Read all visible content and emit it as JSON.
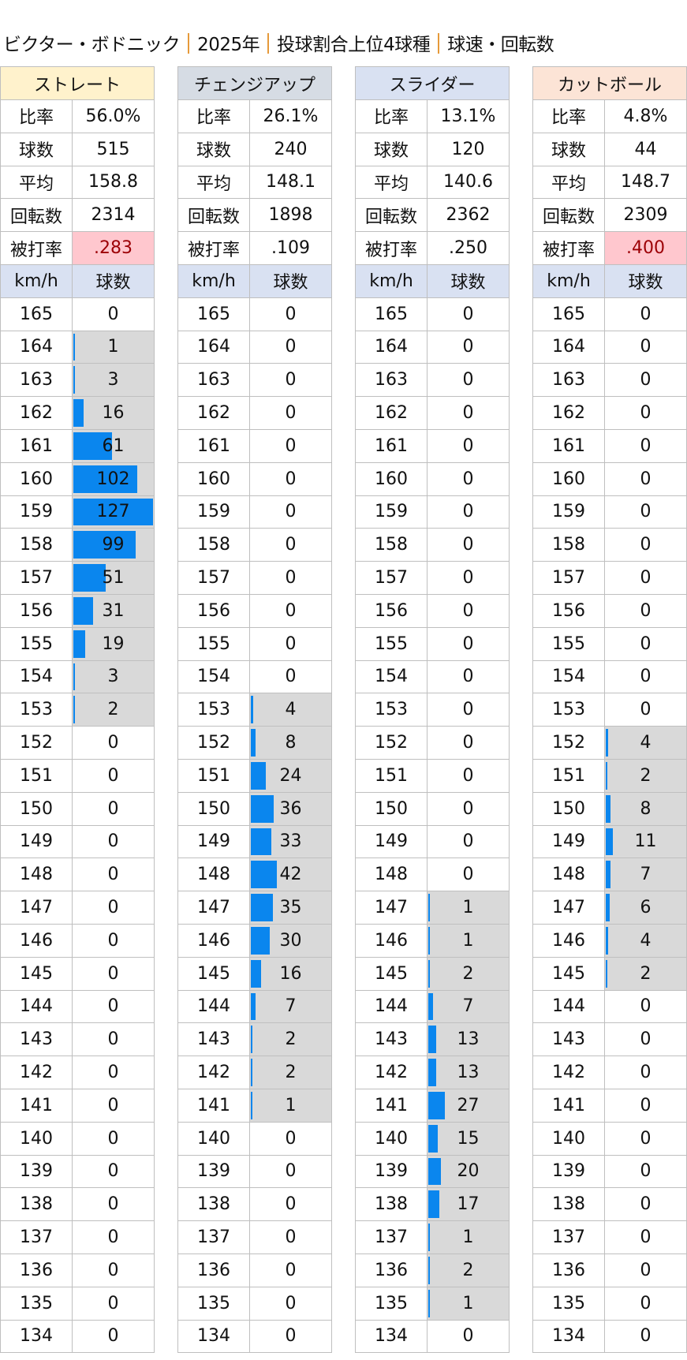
{
  "title": {
    "parts": [
      "ビクター・ボドニック",
      "2025年",
      "投球割合上位4球種",
      "球速・回転数"
    ],
    "separator_color": "#e69a3a"
  },
  "labels": {
    "speed": "km/h",
    "count": "球数"
  },
  "speeds": [
    165,
    164,
    163,
    162,
    161,
    160,
    159,
    158,
    157,
    156,
    155,
    154,
    153,
    152,
    151,
    150,
    149,
    148,
    147,
    146,
    145,
    144,
    143,
    142,
    141,
    140,
    139,
    138,
    137,
    136,
    135,
    134
  ],
  "bar_max": 127,
  "colors": {
    "bar": "#0a86ee",
    "range_bg": "#d9d9d9",
    "subheader_bg": "#d9e1f2",
    "highlight_bg": "#ffc7ce",
    "highlight_text": "#9c0006"
  },
  "pitches": [
    {
      "name": "ストレート",
      "header_color": "#fff2cc",
      "stats": [
        {
          "label": "比率",
          "value": "56.0%"
        },
        {
          "label": "球数",
          "value": "515"
        },
        {
          "label": "平均",
          "value": "158.8"
        },
        {
          "label": "回転数",
          "value": "2314"
        },
        {
          "label": "被打率",
          "value": ".283",
          "highlight": true
        }
      ],
      "counts": [
        0,
        1,
        3,
        16,
        61,
        102,
        127,
        99,
        51,
        31,
        19,
        3,
        2,
        0,
        0,
        0,
        0,
        0,
        0,
        0,
        0,
        0,
        0,
        0,
        0,
        0,
        0,
        0,
        0,
        0,
        0,
        0
      ]
    },
    {
      "name": "チェンジアップ",
      "header_color": "#d6dce4",
      "stats": [
        {
          "label": "比率",
          "value": "26.1%"
        },
        {
          "label": "球数",
          "value": "240"
        },
        {
          "label": "平均",
          "value": "148.1"
        },
        {
          "label": "回転数",
          "value": "1898"
        },
        {
          "label": "被打率",
          "value": ".109",
          "highlight": false
        }
      ],
      "counts": [
        0,
        0,
        0,
        0,
        0,
        0,
        0,
        0,
        0,
        0,
        0,
        0,
        4,
        8,
        24,
        36,
        33,
        42,
        35,
        30,
        16,
        7,
        2,
        2,
        1,
        0,
        0,
        0,
        0,
        0,
        0,
        0
      ]
    },
    {
      "name": "スライダー",
      "header_color": "#d9e1f2",
      "stats": [
        {
          "label": "比率",
          "value": "13.1%"
        },
        {
          "label": "球数",
          "value": "120"
        },
        {
          "label": "平均",
          "value": "140.6"
        },
        {
          "label": "回転数",
          "value": "2362"
        },
        {
          "label": "被打率",
          "value": ".250",
          "highlight": false
        }
      ],
      "counts": [
        0,
        0,
        0,
        0,
        0,
        0,
        0,
        0,
        0,
        0,
        0,
        0,
        0,
        0,
        0,
        0,
        0,
        0,
        1,
        1,
        2,
        7,
        13,
        13,
        27,
        15,
        20,
        17,
        1,
        2,
        1,
        0
      ]
    },
    {
      "name": "カットボール",
      "header_color": "#fce4d6",
      "stats": [
        {
          "label": "比率",
          "value": "4.8%"
        },
        {
          "label": "球数",
          "value": "44"
        },
        {
          "label": "平均",
          "value": "148.7"
        },
        {
          "label": "回転数",
          "value": "2309"
        },
        {
          "label": "被打率",
          "value": ".400",
          "highlight": true
        }
      ],
      "counts": [
        0,
        0,
        0,
        0,
        0,
        0,
        0,
        0,
        0,
        0,
        0,
        0,
        0,
        4,
        2,
        8,
        11,
        7,
        6,
        4,
        2,
        0,
        0,
        0,
        0,
        0,
        0,
        0,
        0,
        0,
        0,
        0
      ]
    }
  ]
}
